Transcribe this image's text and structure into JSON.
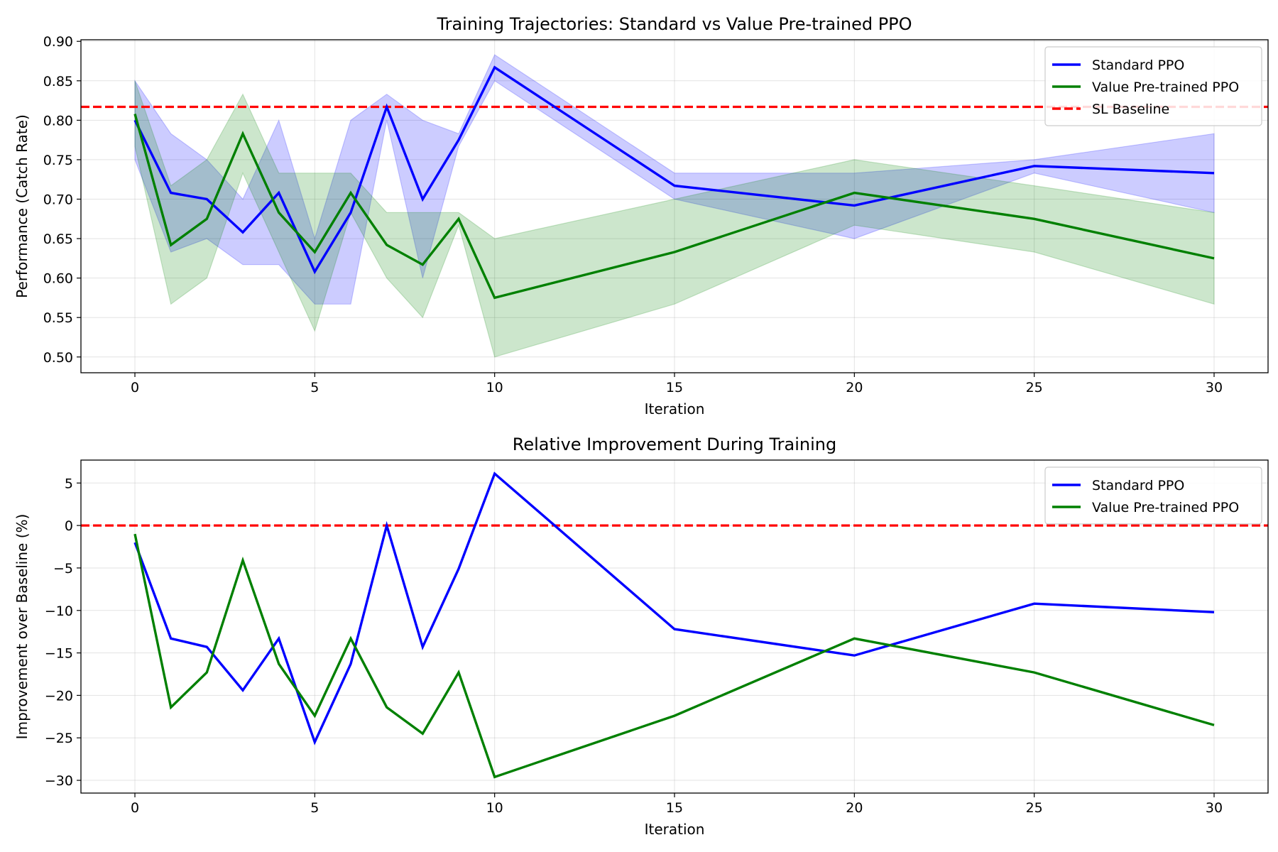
{
  "chart_data": [
    {
      "type": "line",
      "title": "Training Trajectories: Standard vs Value Pre-trained PPO",
      "xlabel": "Iteration",
      "ylabel": "Performance (Catch Rate)",
      "xlim": [
        -1.5,
        31.5
      ],
      "ylim": [
        0.48,
        0.902
      ],
      "xticks": [
        0,
        5,
        10,
        15,
        20,
        25,
        30
      ],
      "yticks": [
        0.5,
        0.55,
        0.6,
        0.65,
        0.7,
        0.75,
        0.8,
        0.85,
        0.9
      ],
      "ytick_labels": [
        "0.50",
        "0.55",
        "0.60",
        "0.65",
        "0.70",
        "0.75",
        "0.80",
        "0.85",
        "0.90"
      ],
      "grid": true,
      "legend_position": "upper right",
      "x": [
        0,
        1,
        2,
        3,
        4,
        5,
        6,
        7,
        8,
        9,
        10,
        15,
        20,
        25,
        30
      ],
      "series": [
        {
          "name": "Standard PPO",
          "color": "#0000ff",
          "values": [
            0.8,
            0.708,
            0.7,
            0.658,
            0.708,
            0.608,
            0.683,
            0.817,
            0.7,
            0.775,
            0.867,
            0.717,
            0.692,
            0.742,
            0.733
          ],
          "band_lower": [
            0.75,
            0.633,
            0.65,
            0.617,
            0.617,
            0.567,
            0.567,
            0.8,
            0.6,
            0.767,
            0.85,
            0.7,
            0.65,
            0.733,
            0.683
          ],
          "band_upper": [
            0.85,
            0.783,
            0.75,
            0.7,
            0.8,
            0.65,
            0.8,
            0.833,
            0.8,
            0.783,
            0.883,
            0.733,
            0.733,
            0.75,
            0.783
          ]
        },
        {
          "name": "Value Pre-trained PPO",
          "color": "#008000",
          "values": [
            0.808,
            0.642,
            0.675,
            0.783,
            0.683,
            0.633,
            0.708,
            0.642,
            0.617,
            0.675,
            0.575,
            0.633,
            0.708,
            0.675,
            0.625
          ],
          "band_lower": [
            0.767,
            0.567,
            0.6,
            0.733,
            0.633,
            0.533,
            0.683,
            0.6,
            0.55,
            0.667,
            0.5,
            0.567,
            0.667,
            0.633,
            0.567
          ],
          "band_upper": [
            0.85,
            0.717,
            0.75,
            0.833,
            0.733,
            0.733,
            0.733,
            0.683,
            0.683,
            0.683,
            0.65,
            0.7,
            0.75,
            0.717,
            0.683
          ]
        }
      ],
      "reference_line": {
        "name": "SL Baseline",
        "y": 0.817,
        "color": "#ff0000",
        "style": "dashed"
      }
    },
    {
      "type": "line",
      "title": "Relative Improvement During Training",
      "xlabel": "Iteration",
      "ylabel": "Improvement over Baseline (%)",
      "xlim": [
        -1.5,
        31.5
      ],
      "ylim": [
        -31.5,
        7.7
      ],
      "xticks": [
        0,
        5,
        10,
        15,
        20,
        25,
        30
      ],
      "yticks": [
        -30,
        -25,
        -20,
        -15,
        -10,
        -5,
        0,
        5
      ],
      "ytick_labels": [
        "−30",
        "−25",
        "−20",
        "−15",
        "−10",
        "−5",
        "0",
        "5"
      ],
      "grid": true,
      "legend_position": "upper right",
      "x": [
        0,
        1,
        2,
        3,
        4,
        5,
        6,
        7,
        8,
        9,
        10,
        15,
        20,
        25,
        30
      ],
      "series": [
        {
          "name": "Standard PPO",
          "color": "#0000ff",
          "values": [
            -2.0,
            -13.3,
            -14.3,
            -19.4,
            -13.3,
            -25.5,
            -16.3,
            0.0,
            -14.3,
            -5.1,
            6.1,
            -12.2,
            -15.3,
            -9.2,
            -10.2
          ]
        },
        {
          "name": "Value Pre-trained PPO",
          "color": "#008000",
          "values": [
            -1.0,
            -21.4,
            -17.3,
            -4.1,
            -16.3,
            -22.4,
            -13.3,
            -21.4,
            -24.5,
            -17.3,
            -29.6,
            -22.4,
            -13.3,
            -17.3,
            -23.5
          ]
        }
      ],
      "reference_line": {
        "y": 0,
        "color": "#ff0000",
        "style": "dashed"
      }
    }
  ]
}
